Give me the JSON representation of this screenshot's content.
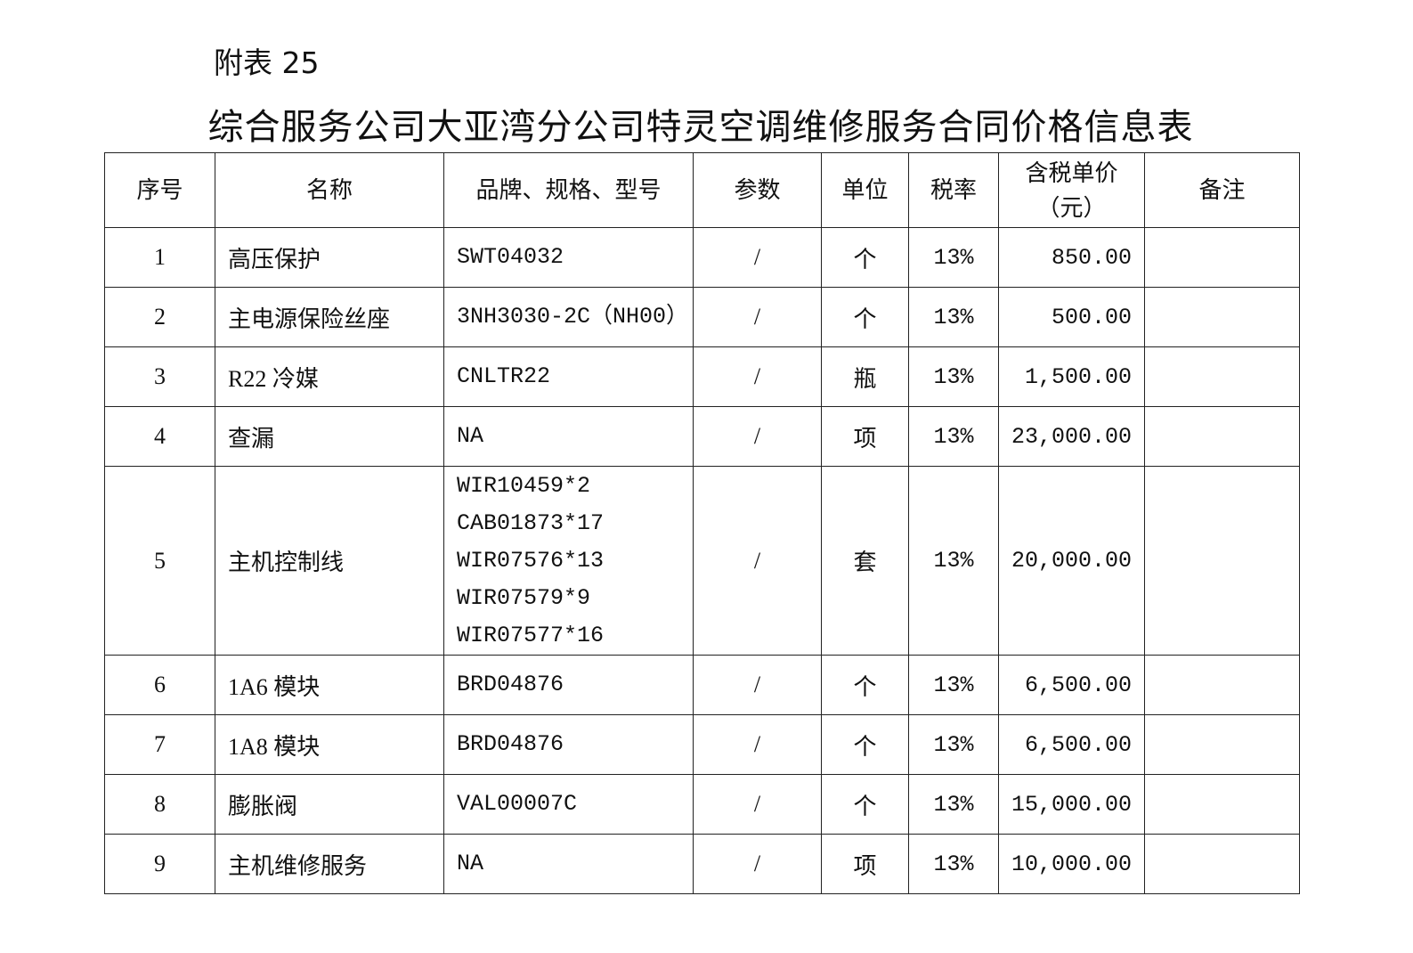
{
  "annex_label": "附表 25",
  "title": "综合服务公司大亚湾分公司特灵空调维修服务合同价格信息表",
  "headers": [
    "序号",
    "名称",
    "品牌、规格、型号",
    "参数",
    "单位",
    "税率",
    "含税单价（元）",
    "备注"
  ],
  "rows": [
    {
      "no": "1",
      "name": "高压保护",
      "spec": [
        "SWT04032"
      ],
      "param": "/",
      "unit": "个",
      "tax": "13%",
      "price": "850.00",
      "note": ""
    },
    {
      "no": "2",
      "name": "主电源保险丝座",
      "spec": [
        "3NH3030-2C（NH00）"
      ],
      "param": "/",
      "unit": "个",
      "tax": "13%",
      "price": "500.00",
      "note": ""
    },
    {
      "no": "3",
      "name": "R22 冷媒",
      "spec": [
        "CNLTR22"
      ],
      "param": "/",
      "unit": "瓶",
      "tax": "13%",
      "price": "1,500.00",
      "note": ""
    },
    {
      "no": "4",
      "name": "查漏",
      "spec": [
        "NA"
      ],
      "param": "/",
      "unit": "项",
      "tax": "13%",
      "price": "23,000.00",
      "note": ""
    },
    {
      "no": "5",
      "name": "主机控制线",
      "spec": [
        "WIR10459*2",
        "CAB01873*17",
        "WIR07576*13",
        "WIR07579*9",
        "WIR07577*16"
      ],
      "param": "/",
      "unit": "套",
      "tax": "13%",
      "price": "20,000.00",
      "note": ""
    },
    {
      "no": "6",
      "name": "1A6 模块",
      "spec": [
        "BRD04876"
      ],
      "param": "/",
      "unit": "个",
      "tax": "13%",
      "price": "6,500.00",
      "note": ""
    },
    {
      "no": "7",
      "name": "1A8 模块",
      "spec": [
        "BRD04876"
      ],
      "param": "/",
      "unit": "个",
      "tax": "13%",
      "price": "6,500.00",
      "note": ""
    },
    {
      "no": "8",
      "name": "膨胀阀",
      "spec": [
        "VAL00007C"
      ],
      "param": "/",
      "unit": "个",
      "tax": "13%",
      "price": "15,000.00",
      "note": ""
    },
    {
      "no": "9",
      "name": "主机维修服务",
      "spec": [
        "NA"
      ],
      "param": "/",
      "unit": "项",
      "tax": "13%",
      "price": "10,000.00",
      "note": ""
    }
  ]
}
